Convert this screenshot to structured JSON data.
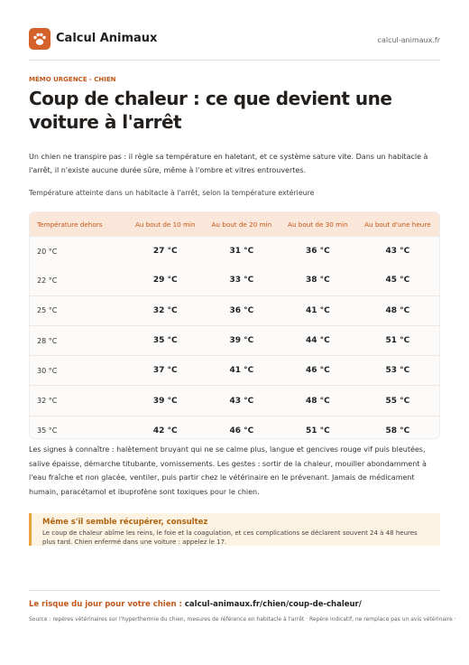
{
  "header": {
    "brand": "Calcul Animaux",
    "url": "calcul-animaux.fr"
  },
  "kicker": "MÉMO URGENCE - CHIEN",
  "title": "Coup de chaleur : ce que devient une voiture à l'arrêt",
  "intro": "Un chien ne transpire pas : il règle sa température en haletant, et ce système sature vite. Dans un habitacle à l'arrêt, il n'existe aucune durée sûre, même à l'ombre et vitres entrouvertes.",
  "table": {
    "caption": "Température atteinte dans un habitacle à l'arrêt, selon la température extérieure",
    "columns": [
      "Température dehors",
      "Au bout de 10 min",
      "Au bout de 20 min",
      "Au bout de 30 min",
      "Au bout d'une heure"
    ],
    "rows": [
      [
        "20 °C",
        "27 °C",
        "31 °C",
        "36 °C",
        "43 °C"
      ],
      [
        "22 °C",
        "29 °C",
        "33 °C",
        "38 °C",
        "45 °C"
      ],
      [
        "25 °C",
        "32 °C",
        "36 °C",
        "41 °C",
        "48 °C"
      ],
      [
        "28 °C",
        "35 °C",
        "39 °C",
        "44 °C",
        "51 °C"
      ],
      [
        "30 °C",
        "37 °C",
        "41 °C",
        "46 °C",
        "53 °C"
      ],
      [
        "32 °C",
        "39 °C",
        "43 °C",
        "48 °C",
        "55 °C"
      ],
      [
        "35 °C",
        "42 °C",
        "46 °C",
        "51 °C",
        "58 °C"
      ]
    ]
  },
  "signs": "Les signes à connaître : halètement bruyant qui ne se calme plus, langue et gencives rouge vif puis bleutées, salive épaisse, démarche titubante, vomissements. Les gestes : sortir de la chaleur, mouiller abondamment à l'eau fraîche et non glacée, ventiler, puis partir chez le vétérinaire en le prévenant. Jamais de médicament humain, paracétamol et ibuprofène sont toxiques pour le chien.",
  "callout": {
    "title": "Même s'il semble récupérer, consultez",
    "text": "Le coup de chaleur abîme les reins, le foie et la coagulation, et ces complications se déclarent souvent 24 à 48 heures plus tard. Chien enfermé dans une voiture : appelez le 17."
  },
  "footer": {
    "label": "Le risque du jour pour votre chien :",
    "link": "calcul-animaux.fr/chien/coup-de-chaleur/",
    "source": "Source : repères vétérinaires sur l'hyperthermie du chien, mesures de référence en habitacle à l'arrêt · Repère indicatif, ne remplace pas un avis vétérinaire ·"
  }
}
